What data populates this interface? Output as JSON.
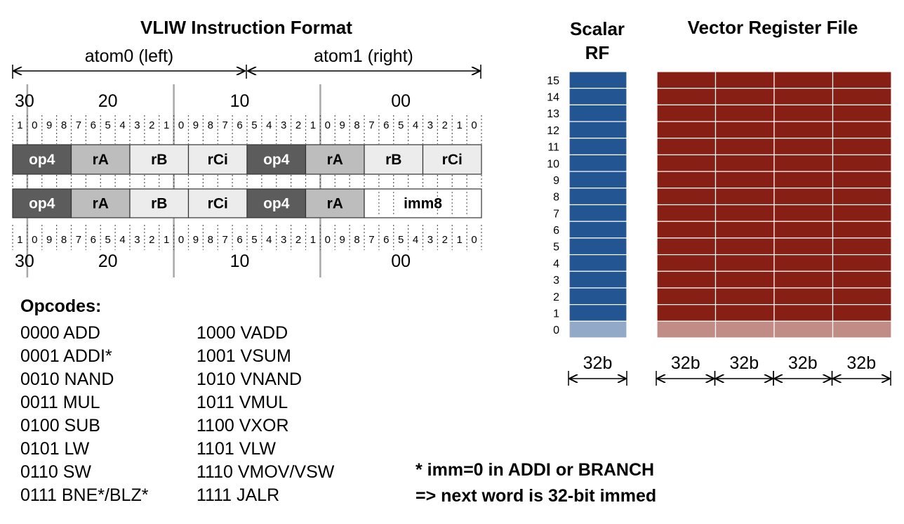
{
  "instruction_format": {
    "title": "VLIW Instruction Format",
    "atom0_label": "atom0 (left)",
    "atom1_label": "atom1 (right)",
    "tens_labels": [
      "30",
      "20",
      "10",
      "00"
    ],
    "bit_digits": [
      "1",
      "0",
      "9",
      "8",
      "7",
      "6",
      "5",
      "4",
      "3",
      "2",
      "1",
      "0",
      "9",
      "8",
      "7",
      "6",
      "5",
      "4",
      "3",
      "2",
      "1",
      "0",
      "9",
      "8",
      "7",
      "6",
      "5",
      "4",
      "3",
      "2",
      "1",
      "0"
    ],
    "row1_fields": [
      {
        "label": "op4",
        "style": "dark"
      },
      {
        "label": "rA",
        "style": "mid"
      },
      {
        "label": "rB",
        "style": "light"
      },
      {
        "label": "rCi",
        "style": "light"
      },
      {
        "label": "op4",
        "style": "dark"
      },
      {
        "label": "rA",
        "style": "mid"
      },
      {
        "label": "rB",
        "style": "light"
      },
      {
        "label": "rCi",
        "style": "light"
      }
    ],
    "row2_fields": [
      {
        "label": "op4",
        "style": "dark"
      },
      {
        "label": "rA",
        "style": "mid"
      },
      {
        "label": "rB",
        "style": "light"
      },
      {
        "label": "rCi",
        "style": "light"
      },
      {
        "label": "op4",
        "style": "dark"
      },
      {
        "label": "rA",
        "style": "mid"
      },
      {
        "label": "imm8",
        "style": "white"
      }
    ],
    "colors": {
      "dark": "#5c5c5c",
      "mid": "#bdbdbd",
      "light": "#ececec",
      "white": "#ffffff"
    }
  },
  "opcodes": {
    "heading": "Opcodes:",
    "left": [
      "0000 ADD",
      "0001 ADDI*",
      "0010 NAND",
      "0011 MUL",
      "0100 SUB",
      "0101 LW",
      "0110 SW",
      "0111 BNE*/BLZ*"
    ],
    "right": [
      "1000 VADD",
      "1001 VSUM",
      "1010 VNAND",
      "1011 VMUL",
      "1100 VXOR",
      "1101 VLW",
      "1110 VMOV/VSW",
      "1111 JALR"
    ]
  },
  "note": {
    "line1": "* imm=0 in ADDI or BRANCH",
    "line2": "=> next word is 32-bit immed"
  },
  "register_files": {
    "scalar_title_line1": "Scalar",
    "scalar_title_line2": "RF",
    "vector_title": "Vector Register File",
    "register_numbers": [
      "15",
      "14",
      "13",
      "12",
      "11",
      "10",
      "9",
      "8",
      "7",
      "6",
      "5",
      "4",
      "3",
      "2",
      "1",
      "0"
    ],
    "scalar_width_label": "32b",
    "vector_width_labels": [
      "32b",
      "32b",
      "32b",
      "32b"
    ],
    "colors": {
      "scalar": "#235592",
      "scalar_reg0": "#93a9c8",
      "vector": "#871f14",
      "vector_reg0": "#c28c86"
    }
  }
}
